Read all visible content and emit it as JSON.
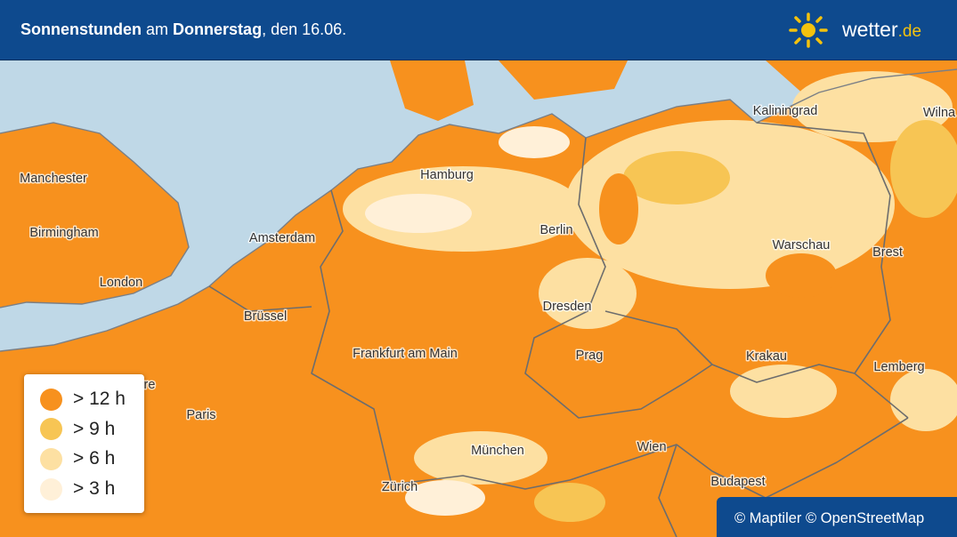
{
  "header": {
    "title": {
      "bold_1": "Sonnenstunden",
      "text_1": "am",
      "bold_2": "Donnerstag",
      "text_2": ", den 16.06."
    },
    "logo": {
      "name": "wetter",
      "tld": ".de"
    }
  },
  "map": {
    "cities": [
      "Manchester",
      "Birmingham",
      "London",
      "Amsterdam",
      "Hamburg",
      "Berlin",
      "Kaliningrad",
      "Wilna",
      "Warschau",
      "Brest",
      "Brüssel",
      "Dresden",
      "Frankfurt am Main",
      "Prag",
      "Krakau",
      "Lemberg",
      "re",
      "Paris",
      "München",
      "Wien",
      "Zürich",
      "Budapest"
    ]
  },
  "legend": {
    "items": [
      {
        "label": "> 12 h",
        "color": "#f7911e"
      },
      {
        "label": "> 9 h",
        "color": "#f7c554"
      },
      {
        "label": "> 6 h",
        "color": "#fde0a2"
      },
      {
        "label": "> 3 h",
        "color": "#fff0d8"
      }
    ]
  },
  "attribution": "© Maptiler © OpenStreetMap"
}
